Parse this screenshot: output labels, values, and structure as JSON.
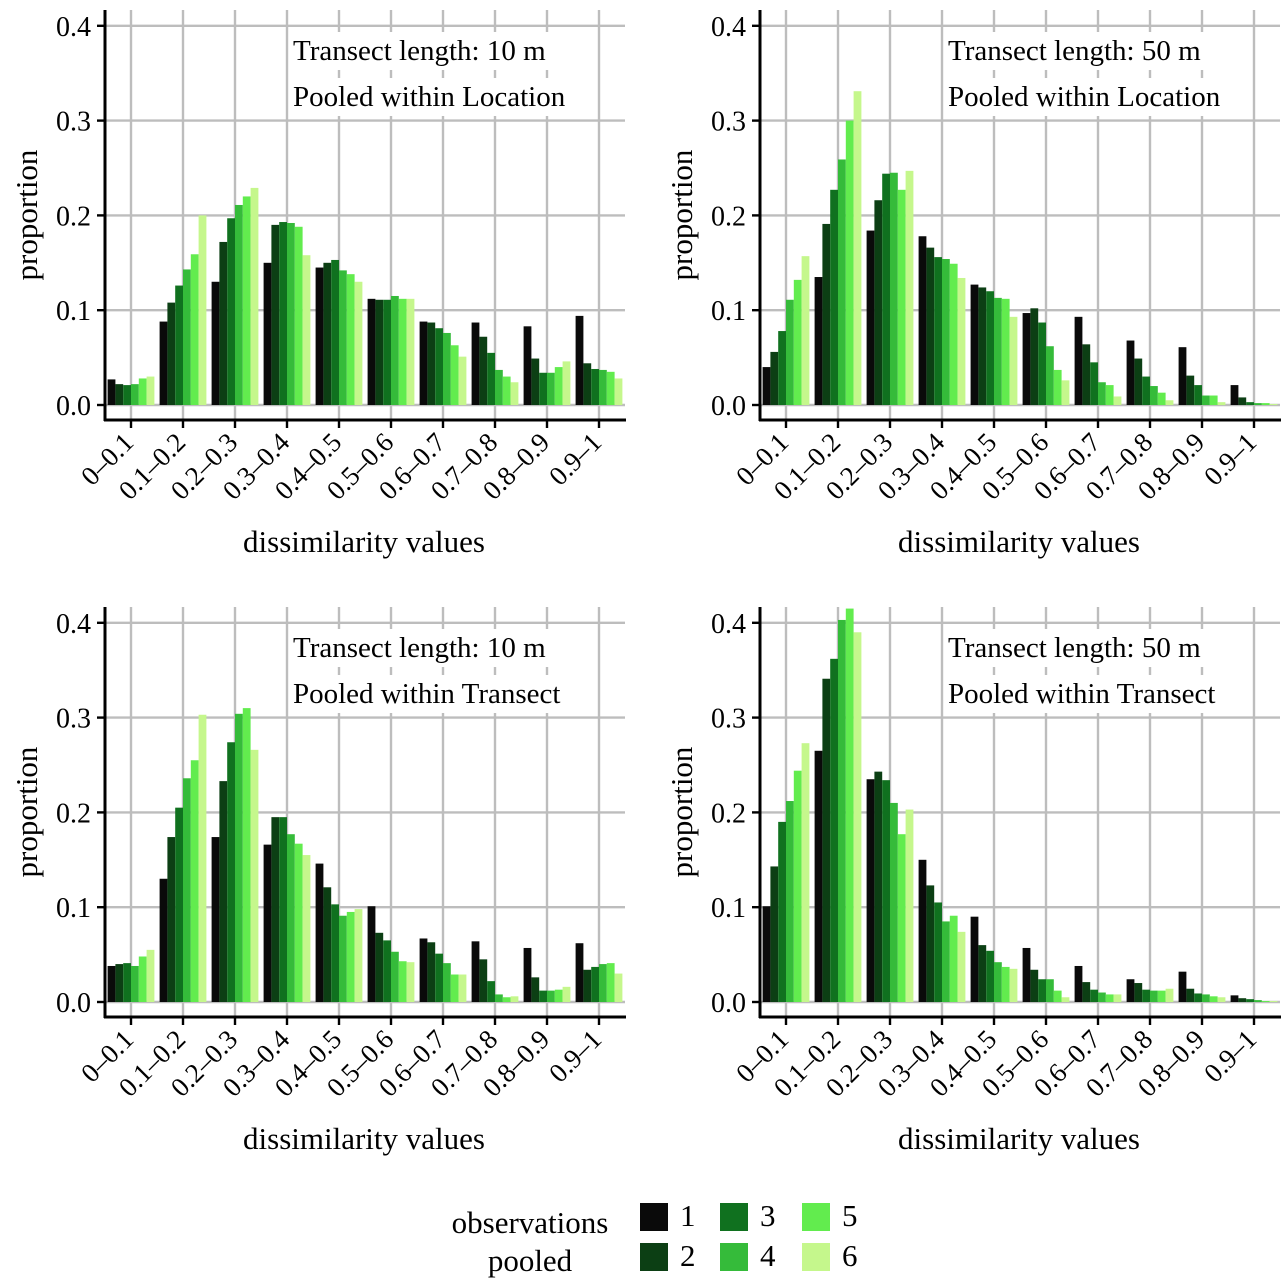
{
  "chart_data": [
    {
      "type": "bar",
      "annotation": [
        "Transect length: 10 m",
        "Pooled within Location"
      ],
      "xlabel": "dissimilarity values",
      "ylabel": "proportion",
      "ylim": [
        0,
        0.42
      ],
      "yticks": [
        "0.0",
        "0.1",
        "0.2",
        "0.3",
        "0.4"
      ],
      "categories": [
        "0–0.1",
        "0.1–0.2",
        "0.2–0.3",
        "0.3–0.4",
        "0.4–0.5",
        "0.5–0.6",
        "0.6–0.7",
        "0.7–0.8",
        "0.8–0.9",
        "0.9–1"
      ],
      "series": [
        {
          "name": "1",
          "values": [
            0.027,
            0.088,
            0.13,
            0.15,
            0.145,
            0.112,
            0.088,
            0.087,
            0.083,
            0.094
          ]
        },
        {
          "name": "2",
          "values": [
            0.022,
            0.108,
            0.172,
            0.19,
            0.15,
            0.111,
            0.087,
            0.072,
            0.049,
            0.044
          ]
        },
        {
          "name": "3",
          "values": [
            0.021,
            0.126,
            0.197,
            0.193,
            0.153,
            0.111,
            0.081,
            0.055,
            0.034,
            0.038
          ]
        },
        {
          "name": "4",
          "values": [
            0.022,
            0.143,
            0.211,
            0.192,
            0.142,
            0.115,
            0.076,
            0.037,
            0.034,
            0.037
          ]
        },
        {
          "name": "5",
          "values": [
            0.028,
            0.159,
            0.22,
            0.188,
            0.138,
            0.112,
            0.063,
            0.03,
            0.04,
            0.035
          ]
        },
        {
          "name": "6",
          "values": [
            0.03,
            0.2,
            0.229,
            0.158,
            0.13,
            0.112,
            0.051,
            0.024,
            0.046,
            0.028
          ]
        }
      ]
    },
    {
      "type": "bar",
      "annotation": [
        "Transect length: 50 m",
        "Pooled within Location"
      ],
      "xlabel": "dissimilarity values",
      "ylabel": "proportion",
      "ylim": [
        0,
        0.42
      ],
      "yticks": [
        "0.0",
        "0.1",
        "0.2",
        "0.3",
        "0.4"
      ],
      "categories": [
        "0–0.1",
        "0.1–0.2",
        "0.2–0.3",
        "0.3–0.4",
        "0.4–0.5",
        "0.5–0.6",
        "0.6–0.7",
        "0.7–0.8",
        "0.8–0.9",
        "0.9–1"
      ],
      "series": [
        {
          "name": "1",
          "values": [
            0.04,
            0.135,
            0.184,
            0.178,
            0.127,
            0.097,
            0.093,
            0.068,
            0.061,
            0.021
          ]
        },
        {
          "name": "2",
          "values": [
            0.056,
            0.191,
            0.216,
            0.166,
            0.124,
            0.102,
            0.064,
            0.049,
            0.031,
            0.008
          ]
        },
        {
          "name": "3",
          "values": [
            0.078,
            0.227,
            0.244,
            0.156,
            0.12,
            0.087,
            0.045,
            0.03,
            0.021,
            0.003
          ]
        },
        {
          "name": "4",
          "values": [
            0.111,
            0.259,
            0.245,
            0.154,
            0.113,
            0.062,
            0.024,
            0.02,
            0.01,
            0.002
          ]
        },
        {
          "name": "5",
          "values": [
            0.132,
            0.3,
            0.227,
            0.149,
            0.112,
            0.037,
            0.021,
            0.013,
            0.01,
            0.002
          ]
        },
        {
          "name": "6",
          "values": [
            0.157,
            0.331,
            0.247,
            0.134,
            0.093,
            0.026,
            0.009,
            0.005,
            0.003,
            0.001
          ]
        }
      ]
    },
    {
      "type": "bar",
      "annotation": [
        "Transect length: 10 m",
        "Pooled within Transect"
      ],
      "xlabel": "dissimilarity values",
      "ylabel": "proportion",
      "ylim": [
        0,
        0.42
      ],
      "yticks": [
        "0.0",
        "0.1",
        "0.2",
        "0.3",
        "0.4"
      ],
      "categories": [
        "0–0.1",
        "0.1–0.2",
        "0.2–0.3",
        "0.3–0.4",
        "0.4–0.5",
        "0.5–0.6",
        "0.6–0.7",
        "0.7–0.8",
        "0.8–0.9",
        "0.9–1"
      ],
      "series": [
        {
          "name": "1",
          "values": [
            0.038,
            0.13,
            0.174,
            0.166,
            0.146,
            0.101,
            0.067,
            0.064,
            0.057,
            0.062
          ]
        },
        {
          "name": "2",
          "values": [
            0.04,
            0.174,
            0.233,
            0.195,
            0.121,
            0.073,
            0.063,
            0.045,
            0.026,
            0.034
          ]
        },
        {
          "name": "3",
          "values": [
            0.041,
            0.205,
            0.274,
            0.195,
            0.103,
            0.065,
            0.051,
            0.022,
            0.012,
            0.037
          ]
        },
        {
          "name": "4",
          "values": [
            0.038,
            0.236,
            0.304,
            0.177,
            0.091,
            0.053,
            0.041,
            0.008,
            0.012,
            0.04
          ]
        },
        {
          "name": "5",
          "values": [
            0.048,
            0.255,
            0.31,
            0.167,
            0.095,
            0.043,
            0.029,
            0.005,
            0.013,
            0.041
          ]
        },
        {
          "name": "6",
          "values": [
            0.055,
            0.303,
            0.266,
            0.155,
            0.098,
            0.042,
            0.029,
            0.006,
            0.016,
            0.03
          ]
        }
      ]
    },
    {
      "type": "bar",
      "annotation": [
        "Transect length: 50 m",
        "Pooled within Transect"
      ],
      "xlabel": "dissimilarity values",
      "ylabel": "proportion",
      "ylim": [
        0,
        0.42
      ],
      "yticks": [
        "0.0",
        "0.1",
        "0.2",
        "0.3",
        "0.4"
      ],
      "categories": [
        "0–0.1",
        "0.1–0.2",
        "0.2–0.3",
        "0.3–0.4",
        "0.4–0.5",
        "0.5–0.6",
        "0.6–0.7",
        "0.7–0.8",
        "0.8–0.9",
        "0.9–1"
      ],
      "series": [
        {
          "name": "1",
          "values": [
            0.101,
            0.265,
            0.235,
            0.15,
            0.09,
            0.057,
            0.038,
            0.024,
            0.032,
            0.007
          ]
        },
        {
          "name": "2",
          "values": [
            0.143,
            0.341,
            0.243,
            0.123,
            0.06,
            0.034,
            0.021,
            0.02,
            0.014,
            0.004
          ]
        },
        {
          "name": "3",
          "values": [
            0.19,
            0.362,
            0.234,
            0.105,
            0.054,
            0.024,
            0.013,
            0.013,
            0.009,
            0.003
          ]
        },
        {
          "name": "4",
          "values": [
            0.212,
            0.403,
            0.21,
            0.085,
            0.042,
            0.024,
            0.01,
            0.012,
            0.008,
            0.002
          ]
        },
        {
          "name": "5",
          "values": [
            0.244,
            0.415,
            0.177,
            0.091,
            0.037,
            0.012,
            0.008,
            0.012,
            0.006,
            0.001
          ]
        },
        {
          "name": "6",
          "values": [
            0.273,
            0.39,
            0.203,
            0.074,
            0.035,
            0.005,
            0.008,
            0.014,
            0.005,
            0.001
          ]
        }
      ]
    }
  ],
  "legend": {
    "title": [
      "observations",
      "pooled"
    ],
    "items": [
      {
        "label": "1",
        "color": "#0a0a0a"
      },
      {
        "label": "2",
        "color": "#0c3f14"
      },
      {
        "label": "3",
        "color": "#10711f"
      },
      {
        "label": "4",
        "color": "#35bb3a"
      },
      {
        "label": "5",
        "color": "#62ec4e"
      },
      {
        "label": "6",
        "color": "#c5f78c"
      }
    ]
  }
}
